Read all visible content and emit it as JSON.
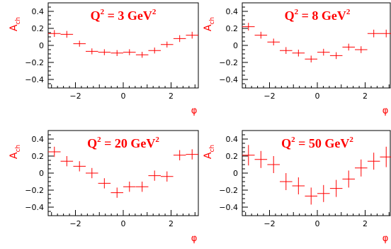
{
  "chart_data": [
    {
      "type": "scatter",
      "title_main": "Q",
      "title_sup": "2",
      "title_rest": " = 3 GeV",
      "title_sup2": "2",
      "ylabel_main": "A",
      "ylabel_sub": "ch",
      "xlabel": "φ",
      "xlim": [
        -3.14,
        3.14
      ],
      "ylim": [
        -0.5,
        0.5
      ],
      "xticks": [
        "−2",
        "0",
        "2"
      ],
      "yticks": [
        "0.4",
        "0.2",
        "0",
        "−0.2",
        "−0.4"
      ],
      "x": [
        -2.88,
        -2.36,
        -1.83,
        -1.31,
        -0.79,
        -0.26,
        0.26,
        0.79,
        1.31,
        1.83,
        2.36,
        2.88
      ],
      "y": [
        0.14,
        0.13,
        0.02,
        -0.07,
        -0.08,
        -0.09,
        -0.08,
        -0.11,
        -0.06,
        0.01,
        0.08,
        0.12
      ],
      "yerr": [
        0.04,
        0.04,
        0.035,
        0.035,
        0.035,
        0.035,
        0.035,
        0.035,
        0.035,
        0.035,
        0.04,
        0.04
      ],
      "xerr": 0.26,
      "grid": false
    },
    {
      "type": "scatter",
      "title_main": "Q",
      "title_sup": "2",
      "title_rest": " = 8 GeV",
      "title_sup2": "2",
      "ylabel_main": "A",
      "ylabel_sub": "ch",
      "xlabel": "φ",
      "xlim": [
        -3.14,
        3.14
      ],
      "ylim": [
        -0.5,
        0.5
      ],
      "xticks": [
        "−2",
        "0",
        "2"
      ],
      "yticks": [
        "0.4",
        "0.2",
        "0",
        "−0.2",
        "−0.4"
      ],
      "x": [
        -2.88,
        -2.36,
        -1.83,
        -1.31,
        -0.79,
        -0.26,
        0.26,
        0.79,
        1.31,
        1.83,
        2.36,
        2.88
      ],
      "y": [
        0.22,
        0.12,
        0.04,
        -0.06,
        -0.09,
        -0.16,
        -0.08,
        -0.12,
        -0.02,
        -0.05,
        0.14,
        0.14
      ],
      "yerr": [
        0.045,
        0.04,
        0.04,
        0.04,
        0.04,
        0.04,
        0.04,
        0.04,
        0.04,
        0.04,
        0.045,
        0.045
      ],
      "xerr": 0.26,
      "grid": false
    },
    {
      "type": "scatter",
      "title_main": "Q",
      "title_sup": "2",
      "title_rest": " = 20 GeV",
      "title_sup2": "2",
      "ylabel_main": "A",
      "ylabel_sub": "ch",
      "xlabel": "φ",
      "xlim": [
        -3.14,
        3.14
      ],
      "ylim": [
        -0.5,
        0.5
      ],
      "xticks": [
        "−2",
        "0",
        "2"
      ],
      "yticks": [
        "0.4",
        "0.2",
        "0",
        "−0.2",
        "−0.4"
      ],
      "x": [
        -2.88,
        -2.36,
        -1.83,
        -1.31,
        -0.79,
        -0.26,
        0.26,
        0.79,
        1.31,
        1.83,
        2.36,
        2.88
      ],
      "y": [
        0.25,
        0.14,
        0.08,
        0.0,
        -0.12,
        -0.23,
        -0.16,
        -0.16,
        -0.03,
        -0.04,
        0.21,
        0.22
      ],
      "yerr": [
        0.06,
        0.06,
        0.06,
        0.06,
        0.06,
        0.06,
        0.06,
        0.06,
        0.06,
        0.06,
        0.06,
        0.06
      ],
      "xerr": 0.26,
      "grid": false
    },
    {
      "type": "scatter",
      "title_main": "Q",
      "title_sup": "2",
      "title_rest": " = 50 GeV",
      "title_sup2": "2",
      "ylabel_main": "A",
      "ylabel_sub": "ch",
      "xlabel": "φ",
      "xlim": [
        -3.14,
        3.14
      ],
      "ylim": [
        -0.5,
        0.5
      ],
      "xticks": [
        "−2",
        "0",
        "2"
      ],
      "yticks": [
        "0.4",
        "0.2",
        "0",
        "−0.2",
        "−0.4"
      ],
      "x": [
        -2.88,
        -2.36,
        -1.83,
        -1.31,
        -0.79,
        -0.26,
        0.26,
        0.79,
        1.31,
        1.83,
        2.36,
        2.88
      ],
      "y": [
        0.21,
        0.16,
        0.1,
        -0.1,
        -0.15,
        -0.27,
        -0.24,
        -0.18,
        -0.07,
        0.06,
        0.14,
        0.19
      ],
      "yerr": [
        0.12,
        0.1,
        0.1,
        0.1,
        0.1,
        0.1,
        0.1,
        0.1,
        0.1,
        0.1,
        0.1,
        0.12
      ],
      "xerr": 0.26,
      "grid": false
    }
  ]
}
